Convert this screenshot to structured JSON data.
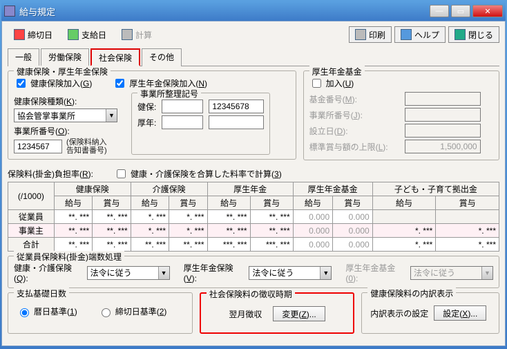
{
  "window": {
    "title": "給与規定"
  },
  "toolbar": {
    "deadline": "締切日",
    "payday": "支給日",
    "calc": "計算",
    "print": "印刷",
    "help": "ヘルプ",
    "close": "閉じる"
  },
  "tabs": {
    "general": "一般",
    "labor": "労働保険",
    "social": "社会保険",
    "other": "その他"
  },
  "health_group": {
    "legend": "健康保険・厚生年金保険",
    "health_join": "健康保険加入(G)",
    "pension_join": "厚生年金保険加入(N)",
    "type_label": "健康保険種類(K):",
    "type_value": "協会管掌事業所",
    "office_code_label": "事業所整理記号",
    "kenpo": "健保:",
    "kounen": "厚年:",
    "kenpo_val": "12345678",
    "office_no_label": "事業所番号(O):",
    "office_no_val": "1234567",
    "note1": "(保険料納入",
    "note2": "告知書番号)"
  },
  "fund_group": {
    "legend": "厚生年金基金",
    "join": "加入(U)",
    "fund_no": "基金番号(M):",
    "office_no": "事業所番号(J):",
    "est_date": "設立日(D):",
    "std_limit": "標準賞与額の上限(L):",
    "std_limit_val": "1,500,000"
  },
  "rate": {
    "legend": "保険料(掛金)負担率(R):",
    "merge_cb": "健康・介護保険を合算した料率で計算(3)",
    "per1000": "(/1000)",
    "cols": {
      "health": "健康保険",
      "kaigo": "介護保険",
      "pension": "厚生年金",
      "fund": "厚生年金基金",
      "child": "子ども・子育て拠出金",
      "sal": "給与",
      "bon": "賞与"
    },
    "rows": {
      "emp": "従業員",
      "own": "事業主",
      "tot": "合計"
    },
    "cell_mask": "*. ***",
    "cell_mask2": "**. ***",
    "cell_mask3": "***. ***",
    "zero": "0.000"
  },
  "round": {
    "legend": "従業員保険料(掛金)端数処理",
    "health_label": "健康・介護保険(Q):",
    "pension_label": "厚生年金保険(V):",
    "fund_label": "厚生年金基金(0):",
    "opt": "法令に従う"
  },
  "base_days": {
    "legend": "支払基礎日数",
    "calendar": "暦日基準(1)",
    "deadline": "締切日基準(2)"
  },
  "collection": {
    "legend": "社会保険料の徴収時期",
    "value": "翌月徴収",
    "change": "変更(Z)..."
  },
  "breakdown": {
    "legend": "健康保険料の内訳表示",
    "label": "内訳表示の設定",
    "btn": "設定(X)..."
  }
}
